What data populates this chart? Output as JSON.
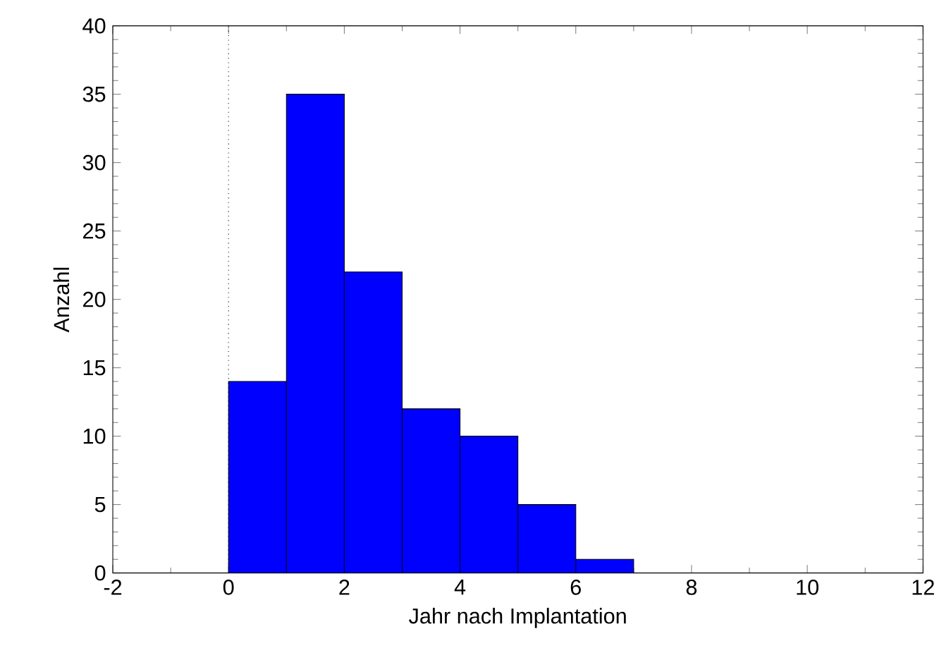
{
  "chart_data": {
    "type": "histogram",
    "xlabel": "Jahr nach Implantation",
    "ylabel": "Anzahl",
    "bins": [
      0,
      1,
      2,
      3,
      4,
      5,
      6,
      7
    ],
    "values": [
      14,
      35,
      22,
      12,
      10,
      5,
      1
    ],
    "color": "#0000ff",
    "xlim": [
      -2,
      12
    ],
    "xticks": [
      -2,
      0,
      2,
      4,
      6,
      8,
      10,
      12
    ],
    "ylim": [
      0,
      40
    ],
    "yticks": [
      0,
      5,
      10,
      15,
      20,
      25,
      30,
      35,
      40
    ],
    "ref_lines": [
      {
        "axis": "x",
        "value": 0,
        "color": "#000000",
        "line_style": "dotted"
      }
    ],
    "grid": false
  }
}
